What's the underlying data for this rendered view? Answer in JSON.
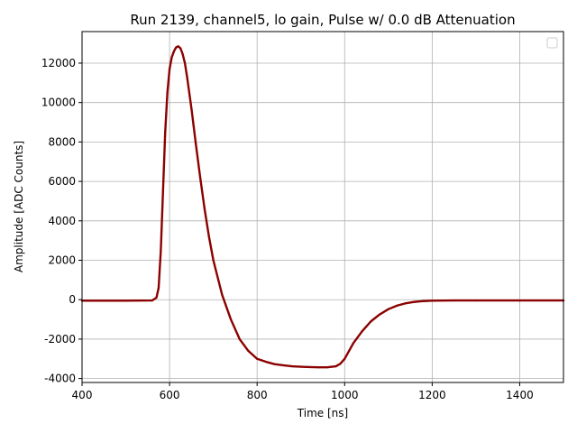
{
  "chart_data": {
    "type": "line",
    "title": "Run 2139, channel5, lo gain, Pulse w/ 0.0 dB Attenuation",
    "xlabel": "Time [ns]",
    "ylabel": "Amplitude [ADC Counts]",
    "xlim": [
      400,
      1500
    ],
    "ylim": [
      -4200,
      13600
    ],
    "xticks": [
      400,
      600,
      800,
      1000,
      1200,
      1400
    ],
    "yticks": [
      -4000,
      -2000,
      0,
      2000,
      4000,
      6000,
      8000,
      10000,
      12000
    ],
    "grid": true,
    "legend": {
      "placement": "top-right",
      "entries": []
    },
    "series": [
      {
        "color": "#8b0000",
        "x": [
          400,
          500,
          560,
          570,
          575,
          580,
          585,
          590,
          595,
          600,
          605,
          610,
          615,
          620,
          625,
          630,
          635,
          640,
          650,
          660,
          670,
          680,
          690,
          700,
          720,
          740,
          760,
          780,
          800,
          820,
          840,
          860,
          880,
          900,
          920,
          940,
          960,
          980,
          990,
          1000,
          1010,
          1020,
          1040,
          1060,
          1080,
          1100,
          1120,
          1140,
          1160,
          1180,
          1200,
          1250,
          1300,
          1400,
          1500
        ],
        "y": [
          -50,
          -50,
          -40,
          100,
          600,
          2500,
          5500,
          8500,
          10500,
          11700,
          12300,
          12600,
          12800,
          12850,
          12750,
          12450,
          12000,
          11300,
          9700,
          7900,
          6200,
          4600,
          3200,
          2000,
          250,
          -1000,
          -2000,
          -2600,
          -3000,
          -3150,
          -3270,
          -3330,
          -3380,
          -3400,
          -3420,
          -3430,
          -3430,
          -3380,
          -3250,
          -3000,
          -2600,
          -2200,
          -1600,
          -1100,
          -750,
          -480,
          -300,
          -180,
          -110,
          -70,
          -50,
          -40,
          -40,
          -40,
          -40
        ]
      }
    ]
  }
}
